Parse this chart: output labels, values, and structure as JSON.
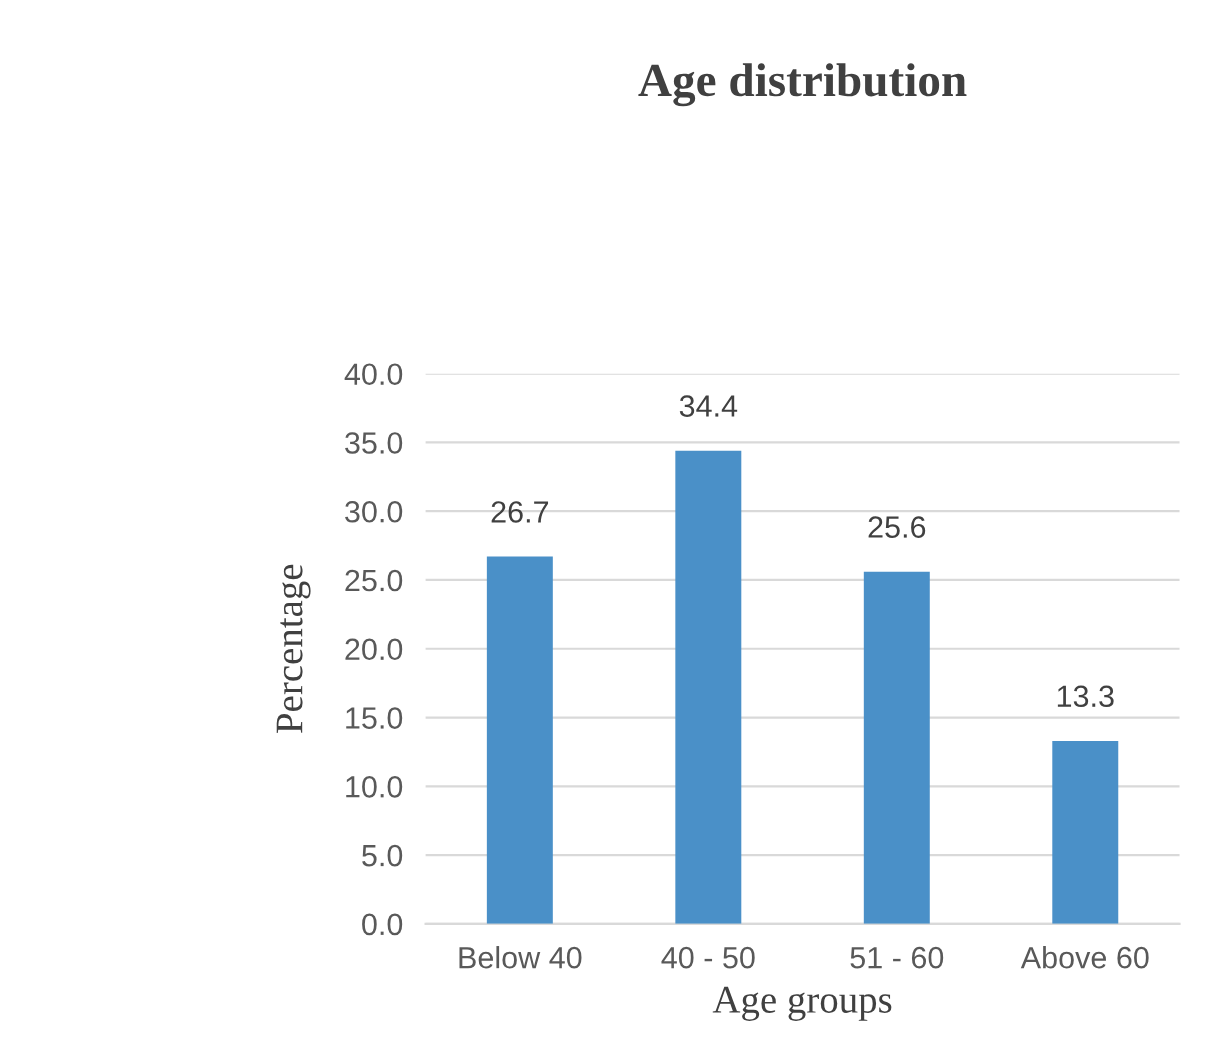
{
  "chart_data": {
    "type": "bar",
    "title": "Age distribution",
    "xlabel": "Age groups",
    "ylabel": "Percentage",
    "categories": [
      "Below 40",
      "40 - 50",
      "51 - 60",
      "Above 60"
    ],
    "values": [
      26.7,
      34.4,
      25.6,
      13.3
    ],
    "color": "#4a90c8",
    "ylim": [
      0,
      40
    ],
    "yticks": [
      {
        "value": 0,
        "label": "0.0"
      },
      {
        "value": 5,
        "label": "5.0"
      },
      {
        "value": 10,
        "label": "10.0"
      },
      {
        "value": 15,
        "label": "15.0"
      },
      {
        "value": 20,
        "label": "20.0"
      },
      {
        "value": 25,
        "label": "25.0"
      },
      {
        "value": 30,
        "label": "30.0"
      },
      {
        "value": 35,
        "label": "35.0"
      },
      {
        "value": 40,
        "label": "40.0"
      }
    ],
    "grid": "y",
    "data_labels": true,
    "legend": false
  }
}
